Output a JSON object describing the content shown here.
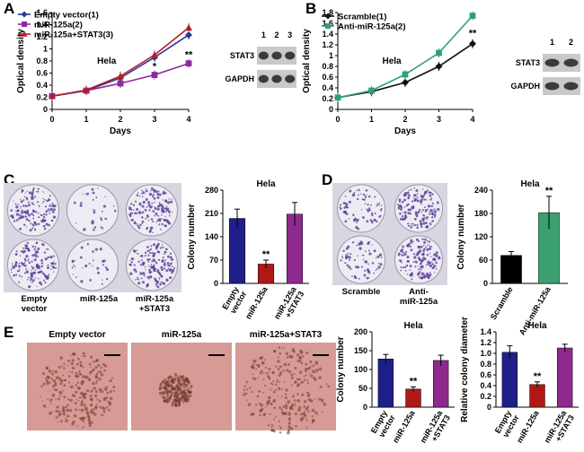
{
  "panel_labels": {
    "A": "A",
    "B": "B",
    "C": "C",
    "D": "D",
    "E": "E"
  },
  "colors": {
    "empty": "#2d3a8f",
    "mir": "#8b2a9e",
    "mir_stat3": "#b01f2e",
    "scramble": "#111111",
    "anti": "#2fa07a",
    "bar_empty": "#1f1f8a",
    "bar_mir": "#b01818",
    "bar_stat3": "#8e2a8e",
    "bar_scramble": "#000000",
    "bar_anti": "#3aa070",
    "dish": "#5a3f9a",
    "tissue": "#d79a96"
  },
  "chart_data": [
    {
      "id": "A",
      "type": "line",
      "xlabel": "Days",
      "ylabel": "Optical density",
      "x": [
        0,
        1,
        2,
        3,
        4
      ],
      "xlim": [
        0,
        4
      ],
      "ylim": [
        0,
        1.6
      ],
      "yticks": [
        "0",
        "0.2",
        "0.4",
        "0.6",
        "0.8",
        "1",
        "1.2",
        "1.4",
        "1.6"
      ],
      "annotation": "Hela",
      "stars": [
        {
          "x": 3,
          "y": 0.66,
          "text": "*"
        },
        {
          "x": 4,
          "y": 0.85,
          "text": "**"
        }
      ],
      "series": [
        {
          "name": "Empty vector(1)",
          "values": [
            0.22,
            0.31,
            0.52,
            0.86,
            1.23
          ],
          "marker": "diamond",
          "color": "#2d3a8f"
        },
        {
          "name": "miR-125a(2)",
          "values": [
            0.22,
            0.31,
            0.43,
            0.57,
            0.76
          ],
          "marker": "square",
          "color": "#8b2a9e"
        },
        {
          "name": "miR-125a+STAT3(3)",
          "values": [
            0.22,
            0.32,
            0.55,
            0.9,
            1.35
          ],
          "marker": "triangle",
          "color": "#b01f2e"
        }
      ],
      "blot": {
        "lanes": [
          "1",
          "2",
          "3"
        ],
        "rows": [
          "STAT3",
          "GAPDH"
        ]
      }
    },
    {
      "id": "B",
      "type": "line",
      "xlabel": "Days",
      "ylabel": "Optical density",
      "x": [
        0,
        1,
        2,
        3,
        4
      ],
      "xlim": [
        0,
        4
      ],
      "ylim": [
        0,
        1.8
      ],
      "yticks": [
        "0",
        "0.2",
        "0.4",
        "0.6",
        "0.8",
        "1",
        "1.2",
        "1.4",
        "1.6",
        "1.8"
      ],
      "annotation": "Hela",
      "stars": [
        {
          "x": 4,
          "y": 1.36,
          "text": "**"
        }
      ],
      "series": [
        {
          "name": "Scramble(1)",
          "values": [
            0.22,
            0.33,
            0.5,
            0.8,
            1.22
          ],
          "marker": "diamond",
          "color": "#111111"
        },
        {
          "name": "Anti-miR-125a(2)",
          "values": [
            0.22,
            0.35,
            0.65,
            1.05,
            1.74
          ],
          "marker": "square",
          "color": "#2fa07a"
        }
      ],
      "blot": {
        "lanes": [
          "1",
          "2"
        ],
        "rows": [
          "STAT3",
          "GAPDH"
        ]
      }
    },
    {
      "id": "C",
      "type": "bar",
      "ylabel": "Colony number",
      "title": "Hela",
      "categories": [
        "Empty vector",
        "miR-125a",
        "miR-125a +STAT3"
      ],
      "values": [
        195,
        58,
        208
      ],
      "errors": [
        28,
        12,
        35
      ],
      "ylim": [
        0,
        280
      ],
      "yticks": [
        "0",
        "70",
        "140",
        "210",
        "280"
      ],
      "stars": [
        {
          "index": 1,
          "text": "**"
        }
      ],
      "dish_labels": [
        "Empty vector",
        "miR-125a",
        "miR-125a +STAT3"
      ]
    },
    {
      "id": "D",
      "type": "bar",
      "ylabel": "Colony number",
      "title": "Hela",
      "categories": [
        "Scramble",
        "Anti-miR-125a"
      ],
      "values": [
        72,
        182
      ],
      "errors": [
        10,
        42
      ],
      "ylim": [
        0,
        240
      ],
      "yticks": [
        "0",
        "60",
        "120",
        "180",
        "240"
      ],
      "stars": [
        {
          "index": 1,
          "text": "**"
        }
      ],
      "dish_labels": [
        "Scramble",
        "Anti- miR-125a"
      ]
    },
    {
      "id": "E1",
      "type": "bar",
      "ylabel": "Colony number",
      "title": "Hela",
      "categories": [
        "Empty vector",
        "miR-125a",
        "miR-125a +STAT3"
      ],
      "values": [
        128,
        48,
        124
      ],
      "errors": [
        12,
        6,
        14
      ],
      "ylim": [
        0,
        200
      ],
      "yticks": [
        "0",
        "50",
        "100",
        "150",
        "200"
      ],
      "stars": [
        {
          "index": 1,
          "text": "**"
        }
      ]
    },
    {
      "id": "E2",
      "type": "bar",
      "ylabel": "Relative colony diameter",
      "title": "Hela",
      "categories": [
        "Empty vector",
        "miR-125a",
        "miR-125a +STAT3"
      ],
      "values": [
        1.02,
        0.42,
        1.1
      ],
      "errors": [
        0.12,
        0.05,
        0.07
      ],
      "ylim": [
        0,
        1.4
      ],
      "yticks": [
        "0",
        "0.2",
        "0.4",
        "0.6",
        "0.8",
        "1.0",
        "1.2",
        "1.4"
      ],
      "stars": [
        {
          "index": 1,
          "text": "**"
        }
      ]
    }
  ],
  "photos_E": [
    "Empty vector",
    "miR-125a",
    "miR-125a+STAT3"
  ]
}
